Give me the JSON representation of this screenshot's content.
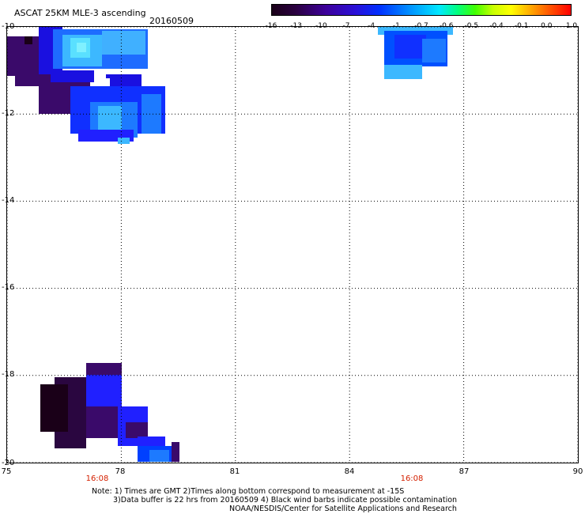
{
  "title": "ASCAT 25KM MLE-3 ascending",
  "date": "20160509",
  "colorbar": {
    "labels": [
      "-16",
      "-13",
      "-10",
      "-7",
      "-4",
      "-1",
      "-0.7",
      "-0.6",
      "-0.5",
      "-0.4",
      "-0.1",
      "0.0",
      "1.0"
    ]
  },
  "axes": {
    "y_ticks": [
      "-10",
      "-12",
      "-14",
      "-16",
      "-18",
      "-20"
    ],
    "x_ticks": [
      "75",
      "78",
      "81",
      "84",
      "87",
      "90"
    ],
    "times": [
      "16:08",
      "16:08"
    ]
  },
  "notes": {
    "line1": "Note: 1) Times are GMT 2)Times along bottom correspond to measurement at -15S",
    "line2": "3)Data buffer is 22 hrs from 20160509 4) Black wind barbs indicate possible contamination",
    "line3": "NOAA/NESDIS/Center for Satellite Applications and Research"
  },
  "chart_data": {
    "type": "heatmap",
    "title": "ASCAT 25KM MLE-3 ascending",
    "lon_range": [
      75,
      90
    ],
    "lat_range": [
      -20,
      -10
    ],
    "grid": true,
    "colorbar_position": "top-right",
    "data_regions": [
      {
        "region": "northwest",
        "lon": [
          75,
          79
        ],
        "lat": [
          -12.7,
          -10
        ],
        "dominant_colors": [
          "#3a0a6a",
          "#1010ff",
          "#20a0ff",
          "#60e0ff"
        ]
      },
      {
        "region": "northeast",
        "lon": [
          84.5,
          86.5
        ],
        "lat": [
          -11.2,
          -10
        ],
        "dominant_colors": [
          "#0050ff",
          "#20a0ff",
          "#40c0ff"
        ]
      },
      {
        "region": "southwest",
        "lon": [
          76,
          79.5
        ],
        "lat": [
          -20,
          -17.7
        ],
        "dominant_colors": [
          "#1a0018",
          "#3a0a6a",
          "#2020ff",
          "#0040ff"
        ]
      }
    ]
  }
}
